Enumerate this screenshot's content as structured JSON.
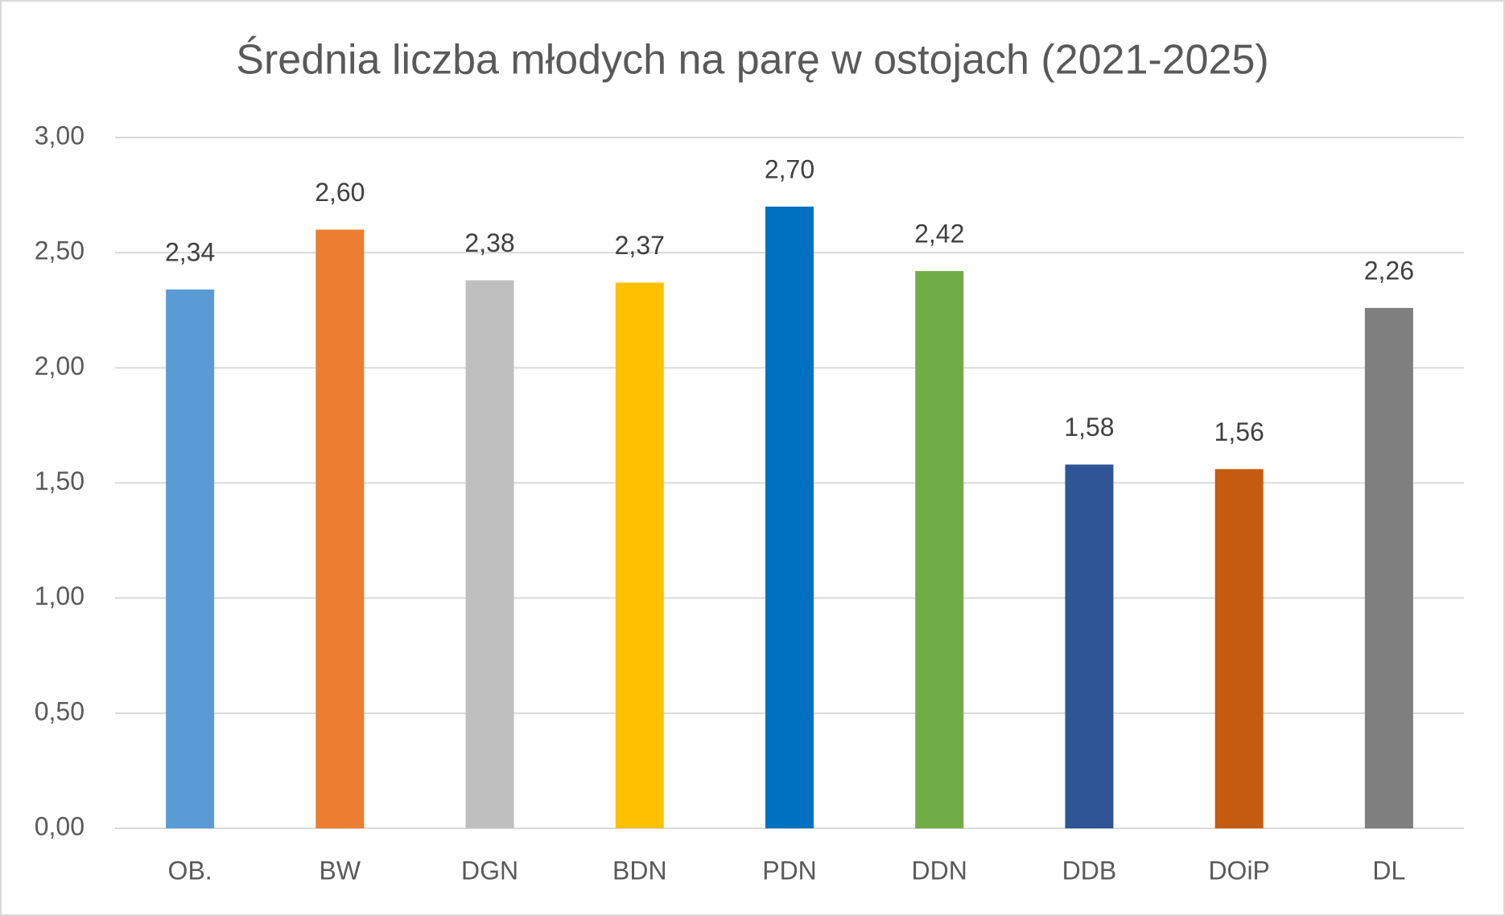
{
  "chart_data": {
    "type": "bar",
    "title": "Średnia liczba młodych na parę w ostojach (2021-2025)",
    "categories": [
      "OB.",
      "BW",
      "DGN",
      "BDN",
      "PDN",
      "DDN",
      "DDB",
      "DOiP",
      "DL"
    ],
    "values": [
      2.34,
      2.6,
      2.38,
      2.37,
      2.7,
      2.42,
      1.58,
      1.56,
      2.26
    ],
    "value_labels": [
      "2,34",
      "2,60",
      "2,38",
      "2,37",
      "2,70",
      "2,42",
      "1,58",
      "1,56",
      "2,26"
    ],
    "colors": [
      "#5b9bd5",
      "#ed7d31",
      "#bfbfbf",
      "#ffc000",
      "#0070c0",
      "#70ad47",
      "#2f5597",
      "#c55a11",
      "#7f7f7f"
    ],
    "ylim": [
      0,
      3
    ],
    "yticks": [
      {
        "value": 0,
        "label": "0,00"
      },
      {
        "value": 0.5,
        "label": "0,50"
      },
      {
        "value": 1,
        "label": "1,00"
      },
      {
        "value": 1.5,
        "label": "1,50"
      },
      {
        "value": 2,
        "label": "2,00"
      },
      {
        "value": 2.5,
        "label": "2,50"
      },
      {
        "value": 3,
        "label": "3,00"
      }
    ],
    "grid": true
  }
}
